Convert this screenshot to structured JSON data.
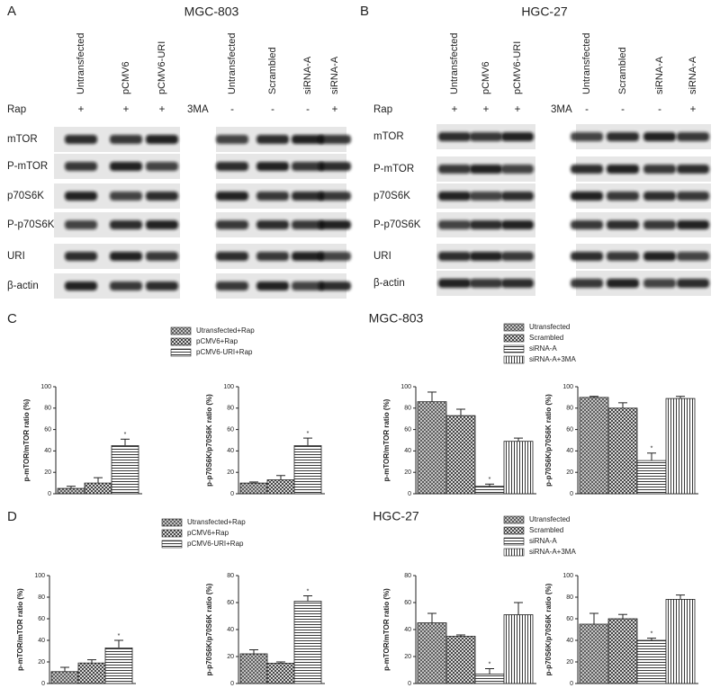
{
  "blots": [
    {
      "label": "A",
      "title": "MGC-803",
      "lanes": [
        "Untransfected",
        "pCMV6",
        "pCMV6-URI",
        "Untransfected",
        "Scrambled",
        "siRNA-A",
        "siRNA-A"
      ],
      "rap_label": "Rap",
      "rap": [
        "+",
        "+",
        "+"
      ],
      "ma_label": "3MA",
      "ma": [
        "-",
        "-",
        "-",
        "+"
      ],
      "rows": [
        "mTOR",
        "P-mTOR",
        "p70S6K",
        "P-p70S6K",
        "URI",
        "β-actin"
      ]
    },
    {
      "label": "B",
      "title": "HGC-27",
      "lanes": [
        "Untransfected",
        "pCMV6",
        "pCMV6-URI",
        "Untransfected",
        "Scrambled",
        "siRNA-A",
        "siRNA-A"
      ],
      "rap_label": "Rap",
      "rap": [
        "+",
        "+",
        "+"
      ],
      "ma_label": "3MA",
      "ma": [
        "-",
        "-",
        "-",
        "+"
      ],
      "rows": [
        "mTOR",
        "P-mTOR",
        "p70S6K",
        "P-p70S6K",
        "URI",
        "β-actin"
      ]
    }
  ],
  "sections": [
    {
      "label": "C",
      "title": "MGC-803"
    },
    {
      "label": "D",
      "title": "HGC-27"
    }
  ],
  "legends": [
    {
      "entries": [
        {
          "name": "Utransfected+Rap",
          "pattern": "checker-dark"
        },
        {
          "name": "pCMV6+Rap",
          "pattern": "checker"
        },
        {
          "name": "pCMV6-URI+Rap",
          "pattern": "hlines"
        }
      ]
    },
    {
      "entries": [
        {
          "name": "Utransfected",
          "pattern": "checker-dark"
        },
        {
          "name": "Scrambled",
          "pattern": "checker"
        },
        {
          "name": "siRNA-A",
          "pattern": "hlines"
        },
        {
          "name": "siRNA-A+3MA",
          "pattern": "vlines"
        }
      ]
    },
    {
      "entries": [
        {
          "name": "Utransfected+Rap",
          "pattern": "checker-dark"
        },
        {
          "name": "pCMV6+Rap",
          "pattern": "checker"
        },
        {
          "name": "pCMV6-URI+Rap",
          "pattern": "hlines"
        }
      ]
    },
    {
      "entries": [
        {
          "name": "Utransfected",
          "pattern": "checker-dark"
        },
        {
          "name": "Scrambled",
          "pattern": "checker"
        },
        {
          "name": "siRNA-A",
          "pattern": "hlines"
        },
        {
          "name": "siRNA-A+3MA",
          "pattern": "vlines"
        }
      ]
    }
  ],
  "chart_data": [
    {
      "type": "bar",
      "ylabel": "p-mTOR/mTOR ratio (%)",
      "legend": 0,
      "values": [
        5,
        10,
        45
      ],
      "errors": [
        2,
        5,
        6
      ],
      "ylim": [
        0,
        100
      ],
      "yticks": [
        0,
        20,
        40,
        60,
        80,
        100
      ],
      "annotations": [
        {
          "category": 2,
          "text": "*"
        }
      ]
    },
    {
      "type": "bar",
      "ylabel": "p-p70S6K/p70S6K ratio (%)",
      "legend": 0,
      "values": [
        10,
        13,
        45
      ],
      "errors": [
        1,
        4,
        7
      ],
      "ylim": [
        0,
        100
      ],
      "yticks": [
        0,
        20,
        40,
        60,
        80,
        100
      ],
      "annotations": [
        {
          "category": 2,
          "text": "*"
        }
      ]
    },
    {
      "type": "bar",
      "ylabel": "p-mTOR/mTOR ratio (%)",
      "legend": 1,
      "values": [
        86,
        73,
        7,
        49
      ],
      "errors": [
        9,
        6,
        2,
        3
      ],
      "ylim": [
        0,
        100
      ],
      "yticks": [
        0,
        20,
        40,
        60,
        80,
        100
      ],
      "annotations": [
        {
          "category": 2,
          "text": "*"
        }
      ]
    },
    {
      "type": "bar",
      "ylabel": "p-p70S6K/p70S6K ratio (%)",
      "legend": 1,
      "values": [
        90,
        80,
        31,
        89
      ],
      "errors": [
        1,
        5,
        7,
        2
      ],
      "ylim": [
        0,
        100
      ],
      "yticks": [
        0,
        20,
        40,
        60,
        80,
        100
      ],
      "annotations": [
        {
          "category": 2,
          "text": "*"
        }
      ]
    },
    {
      "type": "bar",
      "ylabel": "p-mTOR/mTOR ratio (%)",
      "legend": 2,
      "values": [
        11,
        19,
        33
      ],
      "errors": [
        4,
        3,
        7
      ],
      "ylim": [
        0,
        100
      ],
      "yticks": [
        0,
        20,
        40,
        60,
        80,
        100
      ],
      "annotations": [
        {
          "category": 2,
          "text": "*"
        }
      ]
    },
    {
      "type": "bar",
      "ylabel": "p-p70S6K/p70S6K ratio (%)",
      "legend": 2,
      "values": [
        22,
        15,
        61
      ],
      "errors": [
        3,
        1,
        4
      ],
      "ylim": [
        0,
        80
      ],
      "yticks": [
        0,
        20,
        40,
        60,
        80
      ],
      "annotations": [
        {
          "category": 2,
          "text": "*"
        }
      ]
    },
    {
      "type": "bar",
      "ylabel": "p-mTOR/mTOR ratio (%)",
      "legend": 3,
      "values": [
        45,
        35,
        7,
        51
      ],
      "errors": [
        7,
        1,
        4,
        9
      ],
      "ylim": [
        0,
        80
      ],
      "yticks": [
        0,
        20,
        40,
        60,
        80
      ],
      "annotations": [
        {
          "category": 2,
          "text": "*"
        }
      ]
    },
    {
      "type": "bar",
      "ylabel": "p-p70S6K/p70S6K ratio (%)",
      "legend": 3,
      "values": [
        55,
        60,
        40,
        78
      ],
      "errors": [
        10,
        4,
        2,
        4
      ],
      "ylim": [
        0,
        100
      ],
      "yticks": [
        0,
        20,
        40,
        60,
        80,
        100
      ],
      "annotations": [
        {
          "category": 2,
          "text": "*"
        }
      ]
    }
  ]
}
